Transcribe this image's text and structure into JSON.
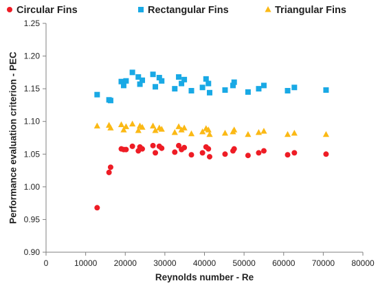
{
  "chart_data": {
    "type": "scatter",
    "title": "",
    "xlabel": "Reynolds number - Re",
    "ylabel": "Performance evaluation criterion - PEC",
    "xlim": [
      0,
      80000
    ],
    "ylim": [
      0.9,
      1.25
    ],
    "xticks": [
      "0",
      "10000",
      "20000",
      "30000",
      "40000",
      "50000",
      "60000",
      "70000",
      "80000"
    ],
    "yticks": [
      "0.90",
      "0.95",
      "1.00",
      "1.05",
      "1.10",
      "1.15",
      "1.20",
      "1.25"
    ],
    "grid": false,
    "legend_position": "top",
    "series": [
      {
        "name": "Circular Fins",
        "marker": "circle",
        "color": "#ee1c25",
        "points": [
          [
            12900,
            0.968
          ],
          [
            15900,
            1.022
          ],
          [
            16300,
            1.03
          ],
          [
            19000,
            1.058
          ],
          [
            19600,
            1.057
          ],
          [
            20200,
            1.057
          ],
          [
            21800,
            1.062
          ],
          [
            23300,
            1.055
          ],
          [
            23700,
            1.061
          ],
          [
            24300,
            1.058
          ],
          [
            27000,
            1.063
          ],
          [
            27600,
            1.052
          ],
          [
            28600,
            1.062
          ],
          [
            29200,
            1.059
          ],
          [
            32500,
            1.053
          ],
          [
            33500,
            1.063
          ],
          [
            34200,
            1.057
          ],
          [
            34900,
            1.06
          ],
          [
            36700,
            1.049
          ],
          [
            39500,
            1.052
          ],
          [
            40400,
            1.061
          ],
          [
            41000,
            1.058
          ],
          [
            41300,
            1.046
          ],
          [
            45200,
            1.05
          ],
          [
            47200,
            1.055
          ],
          [
            47500,
            1.058
          ],
          [
            51000,
            1.048
          ],
          [
            53700,
            1.052
          ],
          [
            55000,
            1.055
          ],
          [
            61000,
            1.049
          ],
          [
            62700,
            1.052
          ],
          [
            70700,
            1.05
          ]
        ]
      },
      {
        "name": "Rectangular Fins",
        "marker": "square",
        "color": "#19a9e5",
        "points": [
          [
            12900,
            1.141
          ],
          [
            15900,
            1.133
          ],
          [
            16300,
            1.132
          ],
          [
            19000,
            1.161
          ],
          [
            19600,
            1.155
          ],
          [
            20200,
            1.162
          ],
          [
            21800,
            1.175
          ],
          [
            23300,
            1.168
          ],
          [
            23700,
            1.157
          ],
          [
            24300,
            1.163
          ],
          [
            27000,
            1.172
          ],
          [
            27600,
            1.153
          ],
          [
            28600,
            1.167
          ],
          [
            29200,
            1.162
          ],
          [
            32500,
            1.15
          ],
          [
            33500,
            1.168
          ],
          [
            34200,
            1.158
          ],
          [
            34900,
            1.164
          ],
          [
            36700,
            1.147
          ],
          [
            39500,
            1.152
          ],
          [
            40400,
            1.165
          ],
          [
            41000,
            1.158
          ],
          [
            41300,
            1.144
          ],
          [
            45200,
            1.148
          ],
          [
            47200,
            1.155
          ],
          [
            47500,
            1.16
          ],
          [
            51000,
            1.145
          ],
          [
            53700,
            1.15
          ],
          [
            55000,
            1.155
          ],
          [
            61000,
            1.147
          ],
          [
            62700,
            1.152
          ],
          [
            70700,
            1.148
          ]
        ]
      },
      {
        "name": "Triangular Fins",
        "marker": "triangle",
        "color": "#fbb915",
        "points": [
          [
            12900,
            1.093
          ],
          [
            15900,
            1.094
          ],
          [
            16300,
            1.09
          ],
          [
            19000,
            1.095
          ],
          [
            19600,
            1.087
          ],
          [
            20200,
            1.092
          ],
          [
            21800,
            1.096
          ],
          [
            23300,
            1.086
          ],
          [
            23700,
            1.093
          ],
          [
            24300,
            1.091
          ],
          [
            27000,
            1.093
          ],
          [
            27600,
            1.086
          ],
          [
            28600,
            1.09
          ],
          [
            29200,
            1.088
          ],
          [
            32500,
            1.083
          ],
          [
            33500,
            1.092
          ],
          [
            34200,
            1.087
          ],
          [
            34900,
            1.09
          ],
          [
            36700,
            1.081
          ],
          [
            39500,
            1.084
          ],
          [
            40400,
            1.089
          ],
          [
            41000,
            1.087
          ],
          [
            41300,
            1.08
          ],
          [
            45200,
            1.082
          ],
          [
            47200,
            1.084
          ],
          [
            47500,
            1.087
          ],
          [
            51000,
            1.08
          ],
          [
            53700,
            1.083
          ],
          [
            55000,
            1.085
          ],
          [
            61000,
            1.08
          ],
          [
            62700,
            1.082
          ],
          [
            70700,
            1.08
          ]
        ]
      }
    ]
  }
}
